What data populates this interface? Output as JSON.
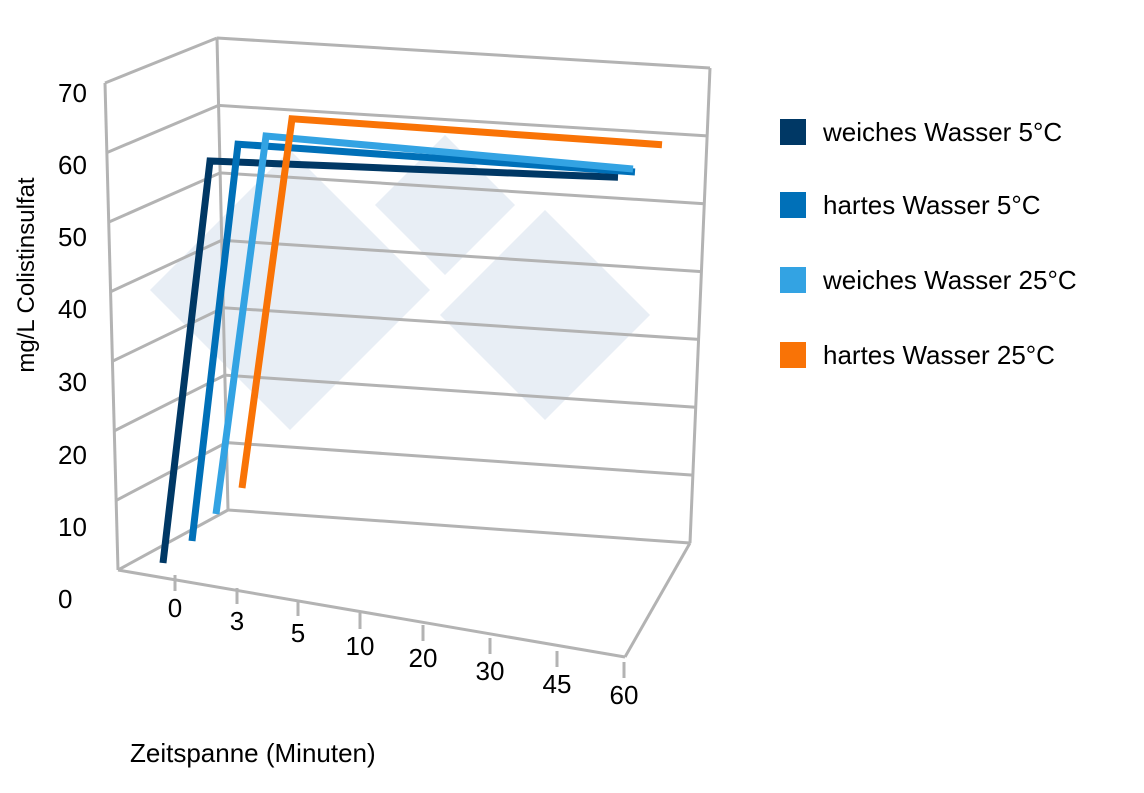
{
  "chart_data": {
    "type": "line",
    "subtype": "3d-line",
    "title": "",
    "xlabel": "Zeitspanne (Minuten)",
    "ylabel": "mg/L Colistinsulfat",
    "categories": [
      "0",
      "3",
      "5",
      "10",
      "20",
      "30",
      "45",
      "60"
    ],
    "y_ticks": [
      "0",
      "10",
      "20",
      "30",
      "40",
      "50",
      "60",
      "70"
    ],
    "ylim": [
      0,
      70
    ],
    "grid": true,
    "legend_position": "right",
    "series": [
      {
        "name": "weiches Wasser 5°C",
        "color": "#003865",
        "values": [
          0,
          60,
          60,
          60,
          60,
          60,
          60,
          60
        ]
      },
      {
        "name": "hartes Wasser 5°C",
        "color": "#0070b8",
        "values": [
          0,
          62,
          62,
          62,
          62,
          62,
          62,
          62
        ]
      },
      {
        "name": "weiches Wasser 25°C",
        "color": "#33a3e3",
        "values": [
          0,
          63,
          63,
          63,
          63,
          63,
          63,
          63
        ]
      },
      {
        "name": "hartes Wasser 25°C",
        "color": "#f97306",
        "values": [
          0,
          65,
          65,
          65,
          65,
          65,
          65,
          65
        ]
      }
    ]
  }
}
